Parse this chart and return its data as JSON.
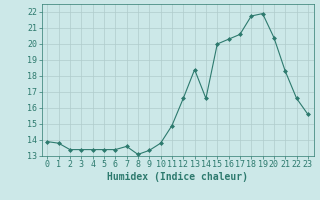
{
  "x": [
    0,
    1,
    2,
    3,
    4,
    5,
    6,
    7,
    8,
    9,
    10,
    11,
    12,
    13,
    14,
    15,
    16,
    17,
    18,
    19,
    20,
    21,
    22,
    23
  ],
  "y": [
    13.9,
    13.8,
    13.4,
    13.4,
    13.4,
    13.4,
    13.4,
    13.6,
    13.1,
    13.35,
    13.8,
    14.9,
    16.6,
    18.4,
    16.6,
    20.0,
    20.3,
    20.6,
    21.75,
    21.9,
    20.4,
    18.3,
    16.6,
    15.6
  ],
  "line_color": "#2d7a6e",
  "marker": "D",
  "marker_size": 2.0,
  "bg_color": "#cce8e8",
  "grid_color": "#b0cccc",
  "xlabel": "Humidex (Indice chaleur)",
  "ylim": [
    13,
    22.5
  ],
  "xlim": [
    -0.5,
    23.5
  ],
  "yticks": [
    13,
    14,
    15,
    16,
    17,
    18,
    19,
    20,
    21,
    22
  ],
  "xticks": [
    0,
    1,
    2,
    3,
    4,
    5,
    6,
    7,
    8,
    9,
    10,
    11,
    12,
    13,
    14,
    15,
    16,
    17,
    18,
    19,
    20,
    21,
    22,
    23
  ],
  "tick_label_size": 6,
  "xlabel_size": 7,
  "line_width": 0.8
}
